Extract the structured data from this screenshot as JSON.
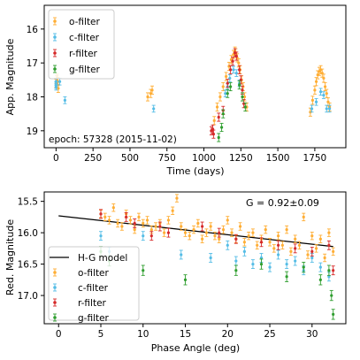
{
  "chart_data": [
    {
      "type": "scatter",
      "xlabel": "Time (days)",
      "ylabel": "App. Magnitude",
      "xlim": [
        -80,
        1960
      ],
      "ylim": [
        19.5,
        15.3
      ],
      "y_inverted": true,
      "xticks": [
        0,
        250,
        500,
        750,
        1000,
        1250,
        1500,
        1750
      ],
      "yticks": [
        16,
        17,
        18,
        19
      ],
      "legend": {
        "placement": "top-left",
        "entries": [
          "o-filter",
          "c-filter",
          "r-filter",
          "g-filter"
        ]
      },
      "annotation": "epoch: 57328 (2015-11-02)",
      "series": [
        {
          "name": "o-filter",
          "color": "#ffae35",
          "points": [
            [
              0,
              17.6
            ],
            [
              5,
              17.5
            ],
            [
              8,
              17.45
            ],
            [
              12,
              17.55
            ],
            [
              15,
              17.75
            ],
            [
              620,
              18.0
            ],
            [
              640,
              17.9
            ],
            [
              650,
              17.8
            ],
            [
              1070,
              18.7
            ],
            [
              1090,
              18.3
            ],
            [
              1110,
              18.0
            ],
            [
              1130,
              17.7
            ],
            [
              1150,
              17.4
            ],
            [
              1170,
              17.1
            ],
            [
              1185,
              16.9
            ],
            [
              1200,
              16.75
            ],
            [
              1210,
              16.65
            ],
            [
              1215,
              16.7
            ],
            [
              1225,
              16.85
            ],
            [
              1235,
              17.0
            ],
            [
              1245,
              17.2
            ],
            [
              1255,
              17.5
            ],
            [
              1265,
              17.7
            ],
            [
              1275,
              18.0
            ],
            [
              1290,
              18.3
            ],
            [
              1720,
              18.45
            ],
            [
              1735,
              18.1
            ],
            [
              1750,
              17.8
            ],
            [
              1760,
              17.55
            ],
            [
              1770,
              17.35
            ],
            [
              1780,
              17.25
            ],
            [
              1790,
              17.2
            ],
            [
              1800,
              17.3
            ],
            [
              1810,
              17.45
            ],
            [
              1820,
              17.7
            ],
            [
              1830,
              17.9
            ],
            [
              1840,
              18.15
            ],
            [
              1850,
              18.3
            ]
          ],
          "err": 0.12
        },
        {
          "name": "c-filter",
          "color": "#55bde6",
          "points": [
            [
              0,
              17.7
            ],
            [
              0,
              17.55
            ],
            [
              0,
              17.65
            ],
            [
              25,
              17.55
            ],
            [
              60,
              18.1
            ],
            [
              660,
              18.35
            ],
            [
              1145,
              17.9
            ],
            [
              1160,
              17.7
            ],
            [
              1175,
              17.45
            ],
            [
              1200,
              17.2
            ],
            [
              1220,
              17.3
            ],
            [
              1240,
              17.6
            ],
            [
              1730,
              18.35
            ],
            [
              1760,
              18.15
            ],
            [
              1790,
              17.85
            ],
            [
              1810,
              17.95
            ],
            [
              1830,
              18.35
            ],
            [
              1850,
              18.35
            ]
          ],
          "err": 0.1
        },
        {
          "name": "r-filter",
          "color": "#d62a2a",
          "points": [
            [
              1050,
              19.0
            ],
            [
              1060,
              18.95
            ],
            [
              1065,
              19.1
            ],
            [
              1100,
              18.6
            ],
            [
              1130,
              18.4
            ],
            [
              1160,
              17.6
            ],
            [
              1180,
              17.2
            ],
            [
              1195,
              16.95
            ],
            [
              1210,
              16.7
            ],
            [
              1220,
              16.8
            ],
            [
              1240,
              17.2
            ],
            [
              1250,
              17.5
            ],
            [
              1260,
              17.8
            ],
            [
              1270,
              18.2
            ]
          ],
          "err": 0.12
        },
        {
          "name": "g-filter",
          "color": "#2f9e2f",
          "points": [
            [
              1100,
              19.2
            ],
            [
              1120,
              18.9
            ],
            [
              1130,
              18.5
            ],
            [
              1160,
              17.9
            ],
            [
              1180,
              17.7
            ],
            [
              1240,
              17.65
            ],
            [
              1260,
              18.0
            ],
            [
              1280,
              18.3
            ]
          ],
          "err": 0.12
        }
      ]
    },
    {
      "type": "scatter",
      "xlabel": "Phase Angle (deg)",
      "ylabel": "Red. Magnitude",
      "xlim": [
        -1.7,
        34.0
      ],
      "ylim": [
        17.45,
        15.35
      ],
      "y_inverted": true,
      "xticks": [
        0,
        5,
        10,
        15,
        20,
        25,
        30
      ],
      "yticks": [
        15.5,
        16.0,
        16.5,
        17.0
      ],
      "legend": {
        "placement": "bottom-left",
        "entries": [
          "H-G model",
          "o-filter",
          "c-filter",
          "r-filter",
          "g-filter"
        ]
      },
      "annotation": "G = 0.92±0.09",
      "model": {
        "name": "H-G model",
        "color": "#000000",
        "x": [
          0,
          32.5
        ],
        "y": [
          15.73,
          16.22
        ]
      },
      "series": [
        {
          "name": "o-filter",
          "color": "#ffae35",
          "points": [
            [
              5,
              15.7
            ],
            [
              5.5,
              15.75
            ],
            [
              6,
              15.8
            ],
            [
              6.5,
              15.6
            ],
            [
              7,
              15.85
            ],
            [
              7.5,
              15.9
            ],
            [
              8,
              15.7
            ],
            [
              8.5,
              15.8
            ],
            [
              9,
              15.95
            ],
            [
              9.5,
              15.75
            ],
            [
              10,
              15.85
            ],
            [
              10.5,
              15.8
            ],
            [
              11,
              15.95
            ],
            [
              11.5,
              15.9
            ],
            [
              12,
              15.85
            ],
            [
              12.5,
              16.0
            ],
            [
              13,
              15.8
            ],
            [
              13.5,
              15.65
            ],
            [
              14,
              15.45
            ],
            [
              14.5,
              15.9
            ],
            [
              15,
              16.0
            ],
            [
              15.5,
              16.05
            ],
            [
              16,
              15.95
            ],
            [
              16.5,
              15.85
            ],
            [
              17,
              16.1
            ],
            [
              17.5,
              16.0
            ],
            [
              18,
              15.9
            ],
            [
              18.5,
              16.05
            ],
            [
              19,
              16.1
            ],
            [
              19.5,
              15.95
            ],
            [
              20,
              15.8
            ],
            [
              20.5,
              16.0
            ],
            [
              21,
              16.1
            ],
            [
              21.5,
              15.9
            ],
            [
              22,
              16.15
            ],
            [
              22.5,
              16.05
            ],
            [
              23,
              16.0
            ],
            [
              23.5,
              16.2
            ],
            [
              24,
              16.1
            ],
            [
              24.5,
              15.95
            ],
            [
              25,
              16.15
            ],
            [
              25.5,
              16.25
            ],
            [
              26,
              16.05
            ],
            [
              26.5,
              16.2
            ],
            [
              27,
              15.95
            ],
            [
              27.5,
              16.3
            ],
            [
              28,
              16.1
            ],
            [
              28.5,
              16.2
            ],
            [
              29,
              15.75
            ],
            [
              29.5,
              16.35
            ],
            [
              30,
              16.05
            ],
            [
              30.5,
              16.25
            ],
            [
              31,
              16.1
            ],
            [
              31.5,
              16.4
            ],
            [
              32,
              16.0
            ],
            [
              32.5,
              16.3
            ]
          ],
          "err": 0.06
        },
        {
          "name": "c-filter",
          "color": "#55bde6",
          "points": [
            [
              5,
              16.05
            ],
            [
              6,
              16.3
            ],
            [
              10,
              16.05
            ],
            [
              14.5,
              16.35
            ],
            [
              18,
              16.4
            ],
            [
              20,
              16.2
            ],
            [
              21,
              16.45
            ],
            [
              22,
              16.3
            ],
            [
              23,
              16.5
            ],
            [
              24,
              16.4
            ],
            [
              25,
              16.55
            ],
            [
              26,
              16.35
            ],
            [
              27,
              16.5
            ],
            [
              28,
              16.45
            ],
            [
              29,
              16.6
            ],
            [
              30,
              16.4
            ],
            [
              31,
              16.55
            ],
            [
              32,
              16.7
            ]
          ],
          "err": 0.07
        },
        {
          "name": "r-filter",
          "color": "#d62a2a",
          "points": [
            [
              5,
              15.7
            ],
            [
              8,
              15.75
            ],
            [
              9,
              15.85
            ],
            [
              11,
              16.05
            ],
            [
              12,
              15.9
            ],
            [
              13,
              16.0
            ],
            [
              17,
              15.9
            ],
            [
              19,
              16.0
            ],
            [
              21,
              16.1
            ],
            [
              24,
              16.15
            ],
            [
              26,
              16.2
            ],
            [
              28,
              16.25
            ],
            [
              30,
              16.3
            ],
            [
              32,
              16.2
            ],
            [
              32.5,
              16.6
            ]
          ],
          "err": 0.07
        },
        {
          "name": "g-filter",
          "color": "#2f9e2f",
          "points": [
            [
              5,
              16.3
            ],
            [
              6,
              16.45
            ],
            [
              10,
              16.6
            ],
            [
              15,
              16.75
            ],
            [
              21,
              16.6
            ],
            [
              24,
              16.5
            ],
            [
              27,
              16.7
            ],
            [
              29,
              16.55
            ],
            [
              31,
              16.75
            ],
            [
              32,
              16.6
            ],
            [
              32.3,
              17.0
            ],
            [
              32.5,
              17.3
            ]
          ],
          "err": 0.08
        }
      ]
    }
  ]
}
